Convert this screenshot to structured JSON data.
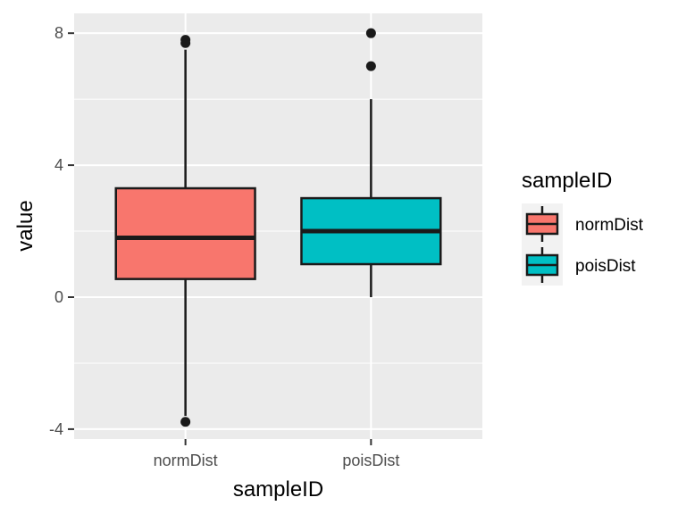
{
  "chart_data": {
    "type": "boxplot",
    "xlabel": "sampleID",
    "ylabel": "value",
    "ylim": [
      -4.3,
      8.6
    ],
    "y_ticks": [
      -4,
      0,
      4,
      8
    ],
    "y_tick_labels": [
      "-4",
      "0",
      "4",
      "8"
    ],
    "grid": true,
    "legend": {
      "title": "sampleID",
      "position": "right",
      "items": [
        {
          "label": "normDist",
          "color": "#F8766D"
        },
        {
          "label": "poisDist",
          "color": "#00BFC4"
        }
      ]
    },
    "categories": [
      "normDist",
      "poisDist"
    ],
    "boxes": [
      {
        "name": "normDist",
        "color": "#F8766D",
        "lower_whisker": -3.6,
        "q1": 0.55,
        "median": 1.8,
        "q3": 3.3,
        "upper_whisker": 7.5,
        "outliers": [
          -3.78,
          7.7,
          7.8
        ]
      },
      {
        "name": "poisDist",
        "color": "#00BFC4",
        "lower_whisker": 0,
        "q1": 1,
        "median": 2,
        "q3": 3,
        "upper_whisker": 6,
        "outliers": [
          7,
          8
        ]
      }
    ]
  }
}
